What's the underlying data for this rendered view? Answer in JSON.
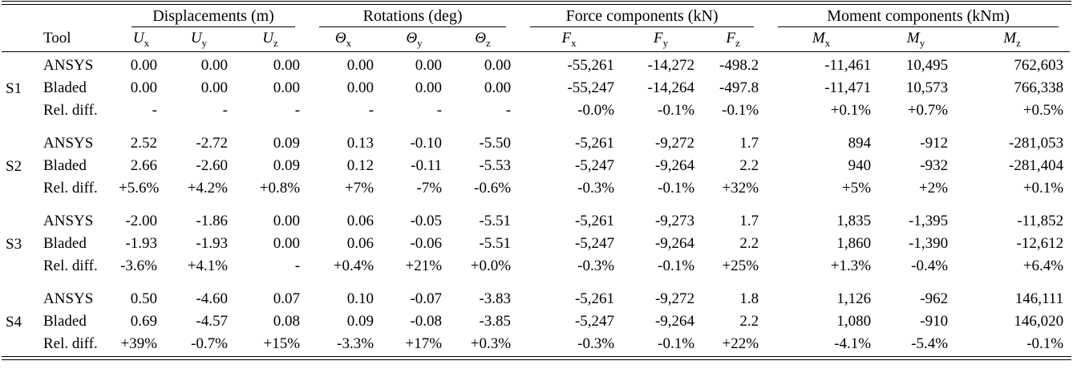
{
  "table": {
    "groups": [
      {
        "label": "Displacements (m)",
        "span": 3
      },
      {
        "label": "Rotations (deg)",
        "span": 3
      },
      {
        "label": "Force components (kN)",
        "span": 3
      },
      {
        "label": "Moment components (kNm)",
        "span": 3
      }
    ],
    "tool_header": "Tool",
    "columns": [
      {
        "base": "U",
        "sub": "x"
      },
      {
        "base": "U",
        "sub": "y"
      },
      {
        "base": "U",
        "sub": "z"
      },
      {
        "base": "Θ",
        "sub": "x"
      },
      {
        "base": "Θ",
        "sub": "y"
      },
      {
        "base": "Θ",
        "sub": "z"
      },
      {
        "base": "F",
        "sub": "x"
      },
      {
        "base": "F",
        "sub": "y"
      },
      {
        "base": "F",
        "sub": "z"
      },
      {
        "base": "M",
        "sub": "x"
      },
      {
        "base": "M",
        "sub": "y"
      },
      {
        "base": "M",
        "sub": "z"
      }
    ],
    "sections": [
      {
        "label": "S1",
        "rows": [
          {
            "tool": "ANSYS",
            "values": [
              "0.00",
              "0.00",
              "0.00",
              "0.00",
              "0.00",
              "0.00",
              "-55,261",
              "-14,272",
              "-498.2",
              "-11,461",
              "10,495",
              "762,603"
            ]
          },
          {
            "tool": "Bladed",
            "values": [
              "0.00",
              "0.00",
              "0.00",
              "0.00",
              "0.00",
              "0.00",
              "-55,247",
              "-14,264",
              "-497.8",
              "-11,471",
              "10,573",
              "766,338"
            ]
          },
          {
            "tool": "Rel. diff.",
            "values": [
              "-",
              "-",
              "-",
              "-",
              "-",
              "-",
              "-0.0%",
              "-0.1%",
              "-0.1%",
              "+0.1%",
              "+0.7%",
              "+0.5%"
            ]
          }
        ]
      },
      {
        "label": "S2",
        "rows": [
          {
            "tool": "ANSYS",
            "values": [
              "2.52",
              "-2.72",
              "0.09",
              "0.13",
              "-0.10",
              "-5.50",
              "-5,261",
              "-9,272",
              "1.7",
              "894",
              "-912",
              "-281,053"
            ]
          },
          {
            "tool": "Bladed",
            "values": [
              "2.66",
              "-2.60",
              "0.09",
              "0.12",
              "-0.11",
              "-5.53",
              "-5,247",
              "-9,264",
              "2.2",
              "940",
              "-932",
              "-281,404"
            ]
          },
          {
            "tool": "Rel. diff.",
            "values": [
              "+5.6%",
              "+4.2%",
              "+0.8%",
              "+7%",
              "-7%",
              "-0.6%",
              "-0.3%",
              "-0.1%",
              "+32%",
              "+5%",
              "+2%",
              "+0.1%"
            ]
          }
        ]
      },
      {
        "label": "S3",
        "rows": [
          {
            "tool": "ANSYS",
            "values": [
              "-2.00",
              "-1.86",
              "0.00",
              "0.06",
              "-0.05",
              "-5.51",
              "-5,261",
              "-9,273",
              "1.7",
              "1,835",
              "-1,395",
              "-11,852"
            ]
          },
          {
            "tool": "Bladed",
            "values": [
              "-1.93",
              "-1.93",
              "0.00",
              "0.06",
              "-0.06",
              "-5.51",
              "-5,247",
              "-9,264",
              "2.2",
              "1,860",
              "-1,390",
              "-12,612"
            ]
          },
          {
            "tool": "Rel. diff.",
            "values": [
              "-3.6%",
              "+4.1%",
              "-",
              "+0.4%",
              "+21%",
              "+0.0%",
              "-0.3%",
              "-0.1%",
              "+25%",
              "+1.3%",
              "-0.4%",
              "+6.4%"
            ]
          }
        ]
      },
      {
        "label": "S4",
        "rows": [
          {
            "tool": "ANSYS",
            "values": [
              "0.50",
              "-4.60",
              "0.07",
              "0.10",
              "-0.07",
              "-3.83",
              "-5,261",
              "-9,272",
              "1.8",
              "1,126",
              "-962",
              "146,111"
            ]
          },
          {
            "tool": "Bladed",
            "values": [
              "0.69",
              "-4.57",
              "0.08",
              "0.09",
              "-0.08",
              "-3.85",
              "-5,247",
              "-9,264",
              "2.2",
              "1,080",
              "-910",
              "146,020"
            ]
          },
          {
            "tool": "Rel. diff.",
            "values": [
              "+39%",
              "-0.7%",
              "+15%",
              "-3.3%",
              "+17%",
              "+0.3%",
              "-0.3%",
              "-0.1%",
              "+22%",
              "-4.1%",
              "-5.4%",
              "-0.1%"
            ]
          }
        ]
      }
    ]
  }
}
